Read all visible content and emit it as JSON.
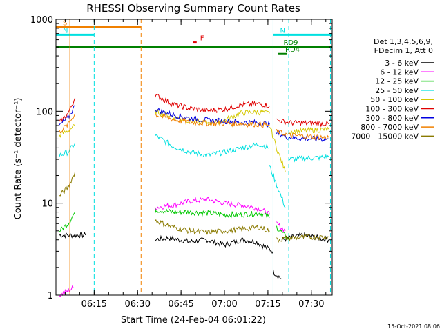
{
  "chart_data": {
    "type": "line",
    "title": "RHESSI Observing Summary Count Rates",
    "xlabel": "Start Time (24-Feb-04 06:01:22)",
    "ylabel": "Count Rate (s⁻¹ detector⁻¹)",
    "yscale": "log",
    "ylim": [
      1,
      1000
    ],
    "xlim_minutes": [
      6.03,
      7.62
    ],
    "xticks": [
      {
        "label": "06:15",
        "value": 6.25
      },
      {
        "label": "06:30",
        "value": 6.5
      },
      {
        "label": "06:45",
        "value": 6.75
      },
      {
        "label": "07:00",
        "value": 7.0
      },
      {
        "label": "07:15",
        "value": 7.25
      },
      {
        "label": "07:30",
        "value": 7.5
      }
    ],
    "yticks": [
      {
        "label": "1",
        "value": 1
      },
      {
        "label": "10",
        "value": 10
      },
      {
        "label": "100",
        "value": 100
      },
      {
        "label": "1000",
        "value": 1000
      }
    ],
    "grid": false,
    "legend_position": "right",
    "legend_header": [
      "Det 1,3,4,5,6,9,",
      "FDecim 1, Att 0"
    ],
    "timestamp": "15-Oct-2021 08:06",
    "series": [
      {
        "name": "3 - 6 keV",
        "color": "#000000",
        "segments": [
          [
            [
              6.05,
              4.5
            ],
            [
              6.2,
              4.5
            ]
          ],
          [
            [
              6.6,
              4.0
            ],
            [
              6.68,
              4.2
            ],
            [
              6.8,
              3.8
            ],
            [
              6.9,
              4.0
            ],
            [
              7.0,
              3.5
            ],
            [
              7.1,
              4.0
            ],
            [
              7.18,
              3.8
            ],
            [
              7.28,
              3.0
            ]
          ],
          [
            [
              7.28,
              1.8
            ],
            [
              7.33,
              1.5
            ]
          ],
          [
            [
              7.33,
              4.0
            ],
            [
              7.45,
              4.5
            ],
            [
              7.6,
              4.0
            ]
          ]
        ]
      },
      {
        "name": "6 - 12 keV",
        "color": "#ff00ff",
        "segments": [
          [
            [
              6.05,
              1.0
            ],
            [
              6.13,
              1.2
            ]
          ],
          [
            [
              6.6,
              9.0
            ],
            [
              6.7,
              9.5
            ],
            [
              6.8,
              10.5
            ],
            [
              6.9,
              11.0
            ],
            [
              7.0,
              10.0
            ],
            [
              7.1,
              9.5
            ],
            [
              7.2,
              8.8
            ],
            [
              7.26,
              7.5
            ]
          ],
          [
            [
              7.3,
              6.0
            ],
            [
              7.35,
              5.0
            ]
          ]
        ]
      },
      {
        "name": "12 - 25 keV",
        "color": "#00c800",
        "segments": [
          [
            [
              6.05,
              5.0
            ],
            [
              6.1,
              6.0
            ],
            [
              6.14,
              8.0
            ]
          ],
          [
            [
              6.6,
              8.5
            ],
            [
              6.7,
              8.0
            ],
            [
              6.8,
              8.0
            ],
            [
              6.9,
              7.8
            ],
            [
              7.0,
              7.5
            ],
            [
              7.1,
              7.5
            ],
            [
              7.2,
              7.8
            ],
            [
              7.26,
              7.0
            ]
          ],
          [
            [
              7.3,
              5.5
            ],
            [
              7.37,
              4.0
            ]
          ]
        ]
      },
      {
        "name": "25 - 50 keV",
        "color": "#00e0e0",
        "segments": [
          [
            [
              6.05,
              33.0
            ],
            [
              6.1,
              36.0
            ],
            [
              6.14,
              45.0
            ]
          ],
          [
            [
              6.6,
              55.0
            ],
            [
              6.7,
              42.0
            ],
            [
              6.8,
              36.0
            ],
            [
              6.9,
              33.0
            ],
            [
              7.0,
              36.0
            ],
            [
              7.1,
              40.0
            ],
            [
              7.2,
              44.0
            ],
            [
              7.26,
              40.0
            ]
          ],
          [
            [
              7.26,
              25.0
            ],
            [
              7.3,
              16.0
            ],
            [
              7.35,
              9.0
            ]
          ],
          [
            [
              7.37,
              30.0
            ],
            [
              7.5,
              31.0
            ],
            [
              7.6,
              32.0
            ]
          ]
        ]
      },
      {
        "name": "50 - 100 keV",
        "color": "#d4c800",
        "segments": [
          [
            [
              6.05,
              55.0
            ],
            [
              6.1,
              62.0
            ],
            [
              6.14,
              70.0
            ]
          ],
          [
            [
              6.6,
              100.0
            ],
            [
              6.7,
              88.0
            ],
            [
              6.8,
              78.0
            ],
            [
              6.9,
              75.0
            ],
            [
              7.0,
              80.0
            ],
            [
              7.1,
              96.0
            ],
            [
              7.2,
              98.0
            ],
            [
              7.26,
              95.0
            ]
          ],
          [
            [
              7.26,
              70.0
            ],
            [
              7.3,
              40.0
            ],
            [
              7.35,
              22.0
            ]
          ],
          [
            [
              7.37,
              60.0
            ],
            [
              7.5,
              62.0
            ],
            [
              7.6,
              64.0
            ]
          ]
        ]
      },
      {
        "name": "100 - 300 keV",
        "color": "#e00000",
        "segments": [
          [
            [
              6.05,
              75.0
            ],
            [
              6.1,
              95.0
            ],
            [
              6.14,
              140.0
            ]
          ],
          [
            [
              6.6,
              150.0
            ],
            [
              6.7,
              120.0
            ],
            [
              6.8,
              108.0
            ],
            [
              6.9,
              102.0
            ],
            [
              7.0,
              105.0
            ],
            [
              7.1,
              118.0
            ],
            [
              7.2,
              120.0
            ],
            [
              7.26,
              115.0
            ]
          ],
          [
            [
              7.3,
              80.0
            ],
            [
              7.37,
              75.0
            ],
            [
              7.5,
              74.0
            ],
            [
              7.6,
              73.0
            ]
          ]
        ]
      },
      {
        "name": "300 - 800 keV",
        "color": "#0000e0",
        "segments": [
          [
            [
              6.05,
              70.0
            ],
            [
              6.1,
              85.0
            ],
            [
              6.14,
              115.0
            ]
          ],
          [
            [
              6.6,
              105.0
            ],
            [
              6.7,
              92.0
            ],
            [
              6.8,
              84.0
            ],
            [
              6.9,
              80.0
            ],
            [
              7.0,
              78.0
            ],
            [
              7.1,
              76.0
            ],
            [
              7.2,
              75.0
            ],
            [
              7.26,
              72.0
            ]
          ],
          [
            [
              7.3,
              58.0
            ],
            [
              7.37,
              52.0
            ],
            [
              7.5,
              50.0
            ],
            [
              7.6,
              50.0
            ]
          ]
        ]
      },
      {
        "name": "800 - 7000 keV",
        "color": "#f08000",
        "segments": [
          [
            [
              6.05,
              60.0
            ],
            [
              6.1,
              72.0
            ],
            [
              6.14,
              95.0
            ]
          ],
          [
            [
              6.6,
              92.0
            ],
            [
              6.7,
              82.0
            ],
            [
              6.8,
              76.0
            ],
            [
              6.9,
              74.0
            ],
            [
              7.0,
              74.0
            ],
            [
              7.1,
              73.0
            ],
            [
              7.2,
              72.0
            ],
            [
              7.26,
              70.0
            ]
          ],
          [
            [
              7.3,
              60.0
            ],
            [
              7.37,
              55.0
            ],
            [
              7.5,
              53.0
            ],
            [
              7.6,
              52.0
            ]
          ]
        ]
      },
      {
        "name": "7000 - 15000 keV",
        "color": "#8a7a00",
        "segments": [
          [
            [
              6.05,
              12.0
            ],
            [
              6.1,
              15.0
            ],
            [
              6.14,
              22.0
            ]
          ],
          [
            [
              6.6,
              6.5
            ],
            [
              6.7,
              5.5
            ],
            [
              6.8,
              5.0
            ],
            [
              6.9,
              4.8
            ],
            [
              7.0,
              5.0
            ],
            [
              7.1,
              5.2
            ],
            [
              7.2,
              5.5
            ],
            [
              7.26,
              5.0
            ]
          ],
          [
            [
              7.3,
              4.0
            ],
            [
              7.37,
              4.2
            ],
            [
              7.5,
              4.3
            ],
            [
              7.6,
              4.3
            ]
          ]
        ]
      }
    ],
    "flags": [
      {
        "label": "S",
        "color": "#f08000",
        "y": 820,
        "from": 6.03,
        "to": 6.52
      },
      {
        "label": "N",
        "color": "#00e0e0",
        "y": 680,
        "from": 6.03,
        "to": 6.25
      },
      {
        "label": "N",
        "color": "#00e0e0",
        "y": 680,
        "from": 7.28,
        "to": 7.62
      },
      {
        "label": "F",
        "color": "#e00000",
        "y": 560,
        "from": 6.82,
        "to": 6.84
      },
      {
        "label": "",
        "color": "#008000",
        "y": 500,
        "from": 6.03,
        "to": 7.62
      },
      {
        "label": "RD9",
        "color": "#008000",
        "y": 500,
        "from": 7.3,
        "to": 7.3
      },
      {
        "label": "RD4",
        "color": "#008000",
        "y": 420,
        "from": 7.31,
        "to": 7.36
      }
    ],
    "vlines": [
      {
        "x": 6.11,
        "color": "#f08000",
        "style": "solid"
      },
      {
        "x": 6.25,
        "color": "#00e0e0",
        "style": "dashed"
      },
      {
        "x": 6.52,
        "color": "#f08000",
        "style": "dashed"
      },
      {
        "x": 7.28,
        "color": "#00e0e0",
        "style": "solid"
      },
      {
        "x": 7.37,
        "color": "#00e0e0",
        "style": "dashed"
      },
      {
        "x": 7.61,
        "color": "#00e0e0",
        "style": "dashed"
      }
    ]
  }
}
